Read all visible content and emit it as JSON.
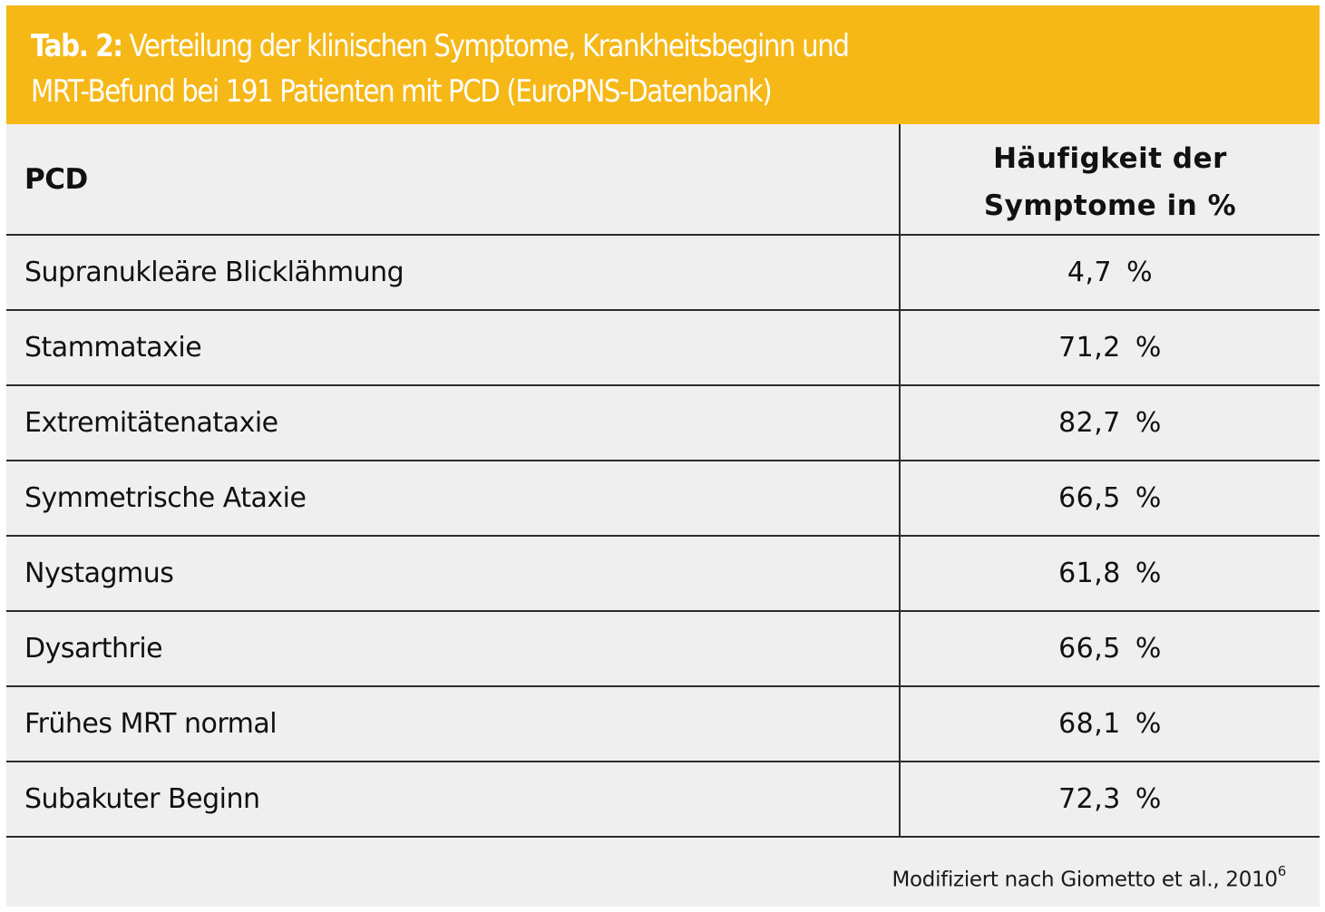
{
  "title": {
    "label": "Tab. 2:",
    "line1": "Verteilung der klinischen Symptome, Krankheitsbeginn und",
    "line2": "MRT-Befund bei 191 Patienten mit PCD (EuroPNS-Datenbank)"
  },
  "colors": {
    "title_bar": "#f6b817",
    "title_text": "#ffffff",
    "table_background": "#efefef",
    "rule": "#2b2b2b"
  },
  "table": {
    "headers": {
      "col1": "PCD",
      "col2_line1": "Häufigkeit der",
      "col2_line2": "Symptome in %"
    },
    "rows": [
      {
        "symptom": "Supranukleäre Blicklähmung",
        "frequency": "4,7 %"
      },
      {
        "symptom": "Stammataxie",
        "frequency": "71,2 %"
      },
      {
        "symptom": "Extremitätenataxie",
        "frequency": "82,7 %"
      },
      {
        "symptom": "Symmetrische Ataxie",
        "frequency": "66,5 %"
      },
      {
        "symptom": "Nystagmus",
        "frequency": "61,8 %"
      },
      {
        "symptom": "Dysarthrie",
        "frequency": "66,5 %"
      },
      {
        "symptom": "Frühes MRT normal",
        "frequency": "68,1 %"
      },
      {
        "symptom": "Subakuter Beginn",
        "frequency": "72,3 %"
      }
    ]
  },
  "footnote": {
    "text": "Modifiziert nach Giometto et al., 2010",
    "reference": "6"
  }
}
